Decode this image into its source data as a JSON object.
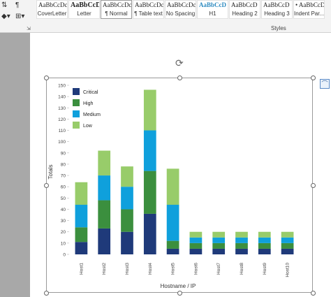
{
  "ribbon": {
    "styles_group_label": "Styles",
    "style_items": [
      {
        "sample": "AaBbCcDc",
        "name": "CoverLetter"
      },
      {
        "sample": "AaBbCcD",
        "name": "Letter"
      },
      {
        "sample": "AaBbCcDc",
        "name": "¶ Normal"
      },
      {
        "sample": "AaBbCcDc",
        "name": "¶ Table text"
      },
      {
        "sample": "AaBbCcDc",
        "name": "No Spacing"
      },
      {
        "sample": "AaBbCcD",
        "name": "H1"
      },
      {
        "sample": "AaBbCcD",
        "name": "Heading 2"
      },
      {
        "sample": "AaBbCcD",
        "name": "Heading 3"
      },
      {
        "sample": "•  AaBbCcDc",
        "name": "Indent Par..."
      }
    ]
  },
  "colors": {
    "Critical": "#1f3a7a",
    "High": "#3b8f3e",
    "Medium": "#0fa0dc",
    "Low": "#98cc6a"
  },
  "chart_data": {
    "type": "bar",
    "stacked": true,
    "categories": [
      "Host1",
      "Host2",
      "Host3",
      "Host4",
      "Host5",
      "Host6",
      "Host7",
      "Host8",
      "Host9",
      "Host10"
    ],
    "series": [
      {
        "name": "Critical",
        "values": [
          11,
          23,
          20,
          36,
          5,
          5,
          5,
          5,
          5,
          5
        ]
      },
      {
        "name": "High",
        "values": [
          13,
          25,
          20,
          38,
          7,
          5,
          5,
          5,
          5,
          5
        ]
      },
      {
        "name": "Medium",
        "values": [
          20,
          22,
          20,
          36,
          32,
          5,
          5,
          5,
          5,
          5
        ]
      },
      {
        "name": "Low",
        "values": [
          20,
          22,
          18,
          36,
          32,
          5,
          5,
          5,
          5,
          5
        ]
      }
    ],
    "xlabel": "Hostname / IP",
    "ylabel": "Totals",
    "ylim": [
      0,
      150
    ],
    "yticks": [
      0,
      10,
      20,
      30,
      40,
      50,
      60,
      70,
      80,
      90,
      100,
      110,
      120,
      130,
      140,
      150
    ],
    "legend_position": "top-left"
  }
}
